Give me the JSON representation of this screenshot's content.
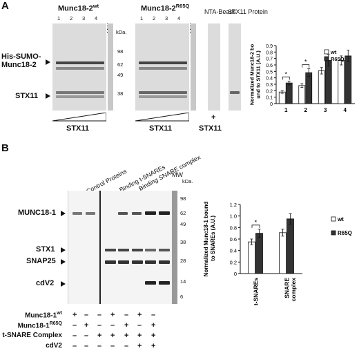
{
  "panel_a": {
    "letter": "A",
    "gel1_title": "Munc18-2",
    "gel1_sup": "wt",
    "gel2_title": "Munc18-2",
    "gel2_sup": "R65Q",
    "lane_numbers": [
      "1",
      "2",
      "3",
      "4"
    ],
    "mw_label": "MW",
    "kda_label": "kDa.",
    "mw_values": [
      "98",
      "62",
      "49",
      "38"
    ],
    "his_label_line1": "His-SUMO-",
    "his_label_line2": "Munc18-2",
    "stx11_label": "STX11",
    "nta_label": "NTA-Beads",
    "stx11_protein_label": "STX11 Protein",
    "bottom_label1": "STX11",
    "bottom_label2": "STX11",
    "plus": "+",
    "bottom_label3": "STX11"
  },
  "panel_b": {
    "letter": "B",
    "col_labels": [
      "Control Proteins",
      "Binding t-SNAREs",
      "Binding SNARE complex"
    ],
    "mw_label": "MW",
    "kda_label": "kDa.",
    "mw_values": [
      "98",
      "62",
      "49",
      "38",
      "28",
      "14",
      "6"
    ],
    "row_labels": [
      "MUNC18-1",
      "STX1",
      "SNAP25",
      "cdV2"
    ],
    "cond_rows": [
      {
        "label": "Munc18-1",
        "sup": "wt",
        "values": [
          "+",
          "–",
          "–",
          "+",
          "–",
          "+",
          "–"
        ]
      },
      {
        "label": "Munc18-1",
        "sup": "R65Q",
        "values": [
          "–",
          "+",
          "–",
          "–",
          "+",
          "–",
          "+"
        ]
      },
      {
        "label": "t-SNARE Complex",
        "sup": "",
        "values": [
          "–",
          "–",
          "+",
          "+",
          "+",
          "+",
          "+"
        ]
      },
      {
        "label": "cdV2",
        "sup": "",
        "values": [
          "–",
          "–",
          "–",
          "–",
          "–",
          "+",
          "+"
        ]
      }
    ]
  },
  "chart_data": [
    {
      "type": "bar",
      "ylabel": "Normalized Munc18-2 bound to STX11 (A.U.)",
      "categories": [
        "1",
        "2",
        "3",
        "4"
      ],
      "ylim": [
        0,
        0.9
      ],
      "yticks": [
        "0",
        "0.1",
        "0.2",
        "0.3",
        "0.4",
        "0.5",
        "0.6",
        "0.7",
        "0.8",
        "0.9"
      ],
      "series": [
        {
          "name": "wt",
          "color": "#ffffff",
          "values": [
            0.18,
            0.28,
            0.51,
            0.67
          ],
          "errors": [
            0.02,
            0.03,
            0.05,
            0.07
          ]
        },
        {
          "name": "R65Q",
          "color": "#333333",
          "values": [
            0.32,
            0.48,
            0.67,
            0.74
          ],
          "errors": [
            0.03,
            0.06,
            0.09,
            0.09
          ]
        }
      ],
      "significance": [
        "*",
        "*"
      ],
      "legend": "top-right"
    },
    {
      "type": "bar",
      "ylabel": "Normalized Munc18-1 bound to SNAREs (A.U.)",
      "categories": [
        "t-SNAREs",
        "SNARE complex"
      ],
      "ylim": [
        0,
        1.2
      ],
      "yticks": [
        "0",
        "0.2",
        "0.4",
        "0.6",
        "0.8",
        "1.0",
        "1.2"
      ],
      "series": [
        {
          "name": "wt",
          "color": "#ffffff",
          "values": [
            0.55,
            0.71
          ],
          "errors": [
            0.05,
            0.06
          ]
        },
        {
          "name": "R65Q",
          "color": "#333333",
          "values": [
            0.7,
            0.95
          ],
          "errors": [
            0.07,
            0.09
          ]
        }
      ],
      "significance": [
        "*"
      ],
      "legend": "top-right"
    }
  ]
}
